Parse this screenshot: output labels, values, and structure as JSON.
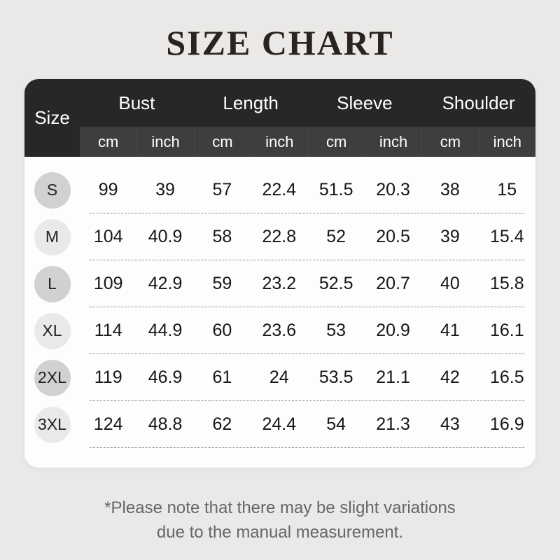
{
  "title": "SIZE CHART",
  "table": {
    "size_label": "Size",
    "groups": [
      "Bust",
      "Length",
      "Sleeve",
      "Shoulder"
    ],
    "units": [
      "cm",
      "inch",
      "cm",
      "inch",
      "cm",
      "inch",
      "cm",
      "inch"
    ],
    "rows": [
      {
        "size": "S",
        "values": [
          "99",
          "39",
          "57",
          "22.4",
          "51.5",
          "20.3",
          "38",
          "15"
        ]
      },
      {
        "size": "M",
        "values": [
          "104",
          "40.9",
          "58",
          "22.8",
          "52",
          "20.5",
          "39",
          "15.4"
        ]
      },
      {
        "size": "L",
        "values": [
          "109",
          "42.9",
          "59",
          "23.2",
          "52.5",
          "20.7",
          "40",
          "15.8"
        ]
      },
      {
        "size": "XL",
        "values": [
          "114",
          "44.9",
          "60",
          "23.6",
          "53",
          "20.9",
          "41",
          "16.1"
        ]
      },
      {
        "size": "2XL",
        "values": [
          "119",
          "46.9",
          "61",
          "24",
          "53.5",
          "21.1",
          "42",
          "16.5"
        ]
      },
      {
        "size": "3XL",
        "values": [
          "124",
          "48.8",
          "62",
          "24.4",
          "54",
          "21.3",
          "43",
          "16.9"
        ]
      }
    ]
  },
  "footnote": {
    "line1": "*Please note that there may be slight variations",
    "line2": "due to the manual measurement."
  },
  "colors": {
    "page_background": "#eae9e8",
    "header_dark": "#272727",
    "header_band": "#3e3e3e",
    "table_body": "#fdfdfd",
    "badge_dark": "#d1d1d1",
    "badge_light": "#e9e9e9",
    "title_text": "#2b231d",
    "value_text": "#161616",
    "footnote_text": "#666669",
    "dash_line": "#949494"
  },
  "chart_data": {
    "type": "table",
    "title": "SIZE CHART",
    "columns": [
      "Size",
      "Bust cm",
      "Bust inch",
      "Length cm",
      "Length inch",
      "Sleeve cm",
      "Sleeve inch",
      "Shoulder cm",
      "Shoulder inch"
    ],
    "rows": [
      [
        "S",
        99,
        39,
        57,
        22.4,
        51.5,
        20.3,
        38,
        15
      ],
      [
        "M",
        104,
        40.9,
        58,
        22.8,
        52,
        20.5,
        39,
        15.4
      ],
      [
        "L",
        109,
        42.9,
        59,
        23.2,
        52.5,
        20.7,
        40,
        15.8
      ],
      [
        "XL",
        114,
        44.9,
        60,
        23.6,
        53,
        20.9,
        41,
        16.1
      ],
      [
        "2XL",
        119,
        46.9,
        61,
        24,
        53.5,
        21.1,
        42,
        16.5
      ],
      [
        "3XL",
        124,
        48.8,
        62,
        24.4,
        54,
        21.3,
        43,
        16.9
      ]
    ],
    "footnote": "*Please note that there may be slight variations due to the manual measurement."
  }
}
